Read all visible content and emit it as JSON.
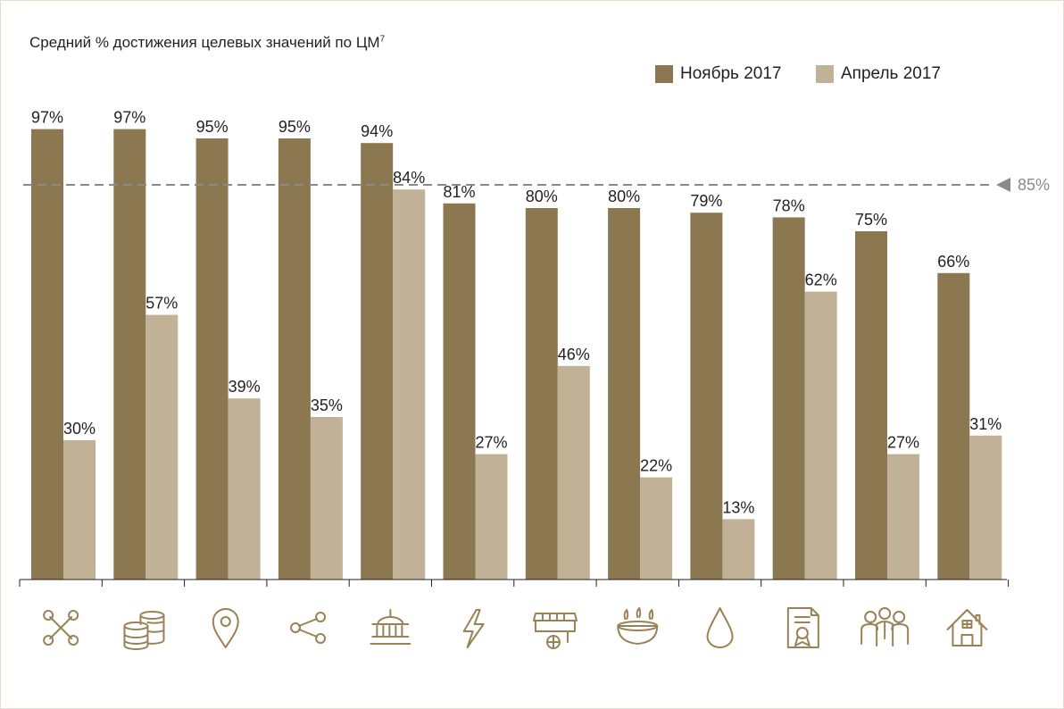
{
  "colors": {
    "november": "#8b7750",
    "april": "#c1b197",
    "refline": "#8a8a8a",
    "icon": "#9a8257",
    "axis": "#231f20"
  },
  "chart_data": {
    "type": "bar",
    "title": "Средний % достижения целевых значений по ЦМ",
    "title_sup": "7",
    "categories": [
      "tools-icon",
      "coins-icon",
      "map-pin-icon",
      "share-icon",
      "building-icon",
      "lightning-icon",
      "market-stall-icon",
      "gas-burner-icon",
      "water-drop-icon",
      "certificate-icon",
      "people-icon",
      "house-icon"
    ],
    "series": [
      {
        "name": "Ноябрь 2017",
        "values": [
          97,
          97,
          95,
          95,
          94,
          81,
          80,
          80,
          79,
          78,
          75,
          66
        ]
      },
      {
        "name": "Апрель 2017",
        "values": [
          30,
          57,
          39,
          35,
          84,
          27,
          46,
          22,
          13,
          62,
          27,
          31
        ]
      }
    ],
    "reference_line": {
      "value": 85,
      "label": "85%"
    },
    "value_suffix": "%",
    "ylim": [
      0,
      100
    ],
    "grid": false,
    "legend_position": "top-right"
  }
}
